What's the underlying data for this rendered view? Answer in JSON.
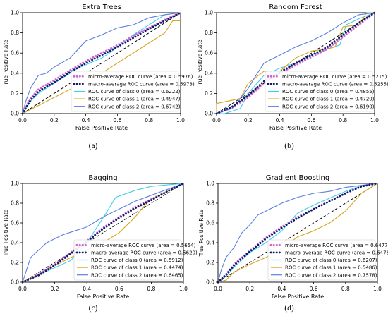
{
  "legend_labels": [
    "micro-average ROC curve",
    "macro-average ROC curve",
    "ROC curve of class 0",
    "ROC curve of class 1",
    "ROC curve of class 2"
  ],
  "series_styles": [
    {
      "color": "#d35fd3",
      "dash": "dot"
    },
    {
      "color": "#0b1a6b",
      "dash": "dot"
    },
    {
      "color": "#3fd0ec",
      "dash": "solid"
    },
    {
      "color": "#d6a61c",
      "dash": "solid"
    },
    {
      "color": "#5b7fe0",
      "dash": "solid"
    }
  ],
  "chart_data": [
    {
      "type": "line",
      "title": "Extra Trees",
      "caption": "(a)",
      "xlabel": "False Positive Rate",
      "ylabel": "True Positive Rate",
      "xlim": [
        0,
        1
      ],
      "ylim": [
        0,
        1
      ],
      "xticks": [
        "0.0",
        "0.2",
        "0.4",
        "0.6",
        "0.8",
        "1.0"
      ],
      "yticks": [
        "0.0",
        "0.2",
        "0.4",
        "0.6",
        "0.8",
        "1.0"
      ],
      "legend_areas": [
        "0.5976",
        "0.5973",
        "0.6222",
        "0.4947",
        "0.6742"
      ],
      "series": [
        {
          "name": "micro-average ROC curve",
          "x": [
            0,
            0.05,
            0.1,
            0.2,
            0.3,
            0.4,
            0.5,
            0.6,
            0.7,
            0.8,
            0.9,
            1
          ],
          "y": [
            0,
            0.15,
            0.24,
            0.33,
            0.43,
            0.52,
            0.6,
            0.68,
            0.77,
            0.85,
            0.93,
            1
          ]
        },
        {
          "name": "macro-average ROC curve",
          "x": [
            0,
            0.05,
            0.1,
            0.2,
            0.3,
            0.4,
            0.5,
            0.6,
            0.7,
            0.8,
            0.9,
            1
          ],
          "y": [
            0,
            0.13,
            0.22,
            0.31,
            0.41,
            0.5,
            0.58,
            0.66,
            0.75,
            0.84,
            0.92,
            1
          ]
        },
        {
          "name": "ROC curve of class 0",
          "x": [
            0,
            0.05,
            0.1,
            0.2,
            0.3,
            0.35,
            0.5,
            0.55,
            0.6,
            0.7,
            0.8,
            0.9,
            1
          ],
          "y": [
            0,
            0.12,
            0.2,
            0.3,
            0.4,
            0.45,
            0.55,
            0.6,
            0.66,
            0.78,
            0.88,
            0.98,
            1
          ]
        },
        {
          "name": "ROC curve of class 1",
          "x": [
            0,
            0.1,
            0.2,
            0.3,
            0.4,
            0.5,
            0.6,
            0.7,
            0.8,
            0.9,
            0.95,
            1
          ],
          "y": [
            0,
            0.08,
            0.16,
            0.24,
            0.33,
            0.4,
            0.5,
            0.6,
            0.7,
            0.8,
            0.92,
            0.92
          ]
        },
        {
          "name": "ROC curve of class 2",
          "x": [
            0,
            0.02,
            0.05,
            0.1,
            0.15,
            0.2,
            0.3,
            0.4,
            0.5,
            0.6,
            0.7,
            0.8,
            0.9,
            1
          ],
          "y": [
            0,
            0.12,
            0.25,
            0.38,
            0.4,
            0.46,
            0.55,
            0.72,
            0.78,
            0.85,
            0.88,
            0.95,
            0.98,
            1
          ]
        }
      ]
    },
    {
      "type": "line",
      "title": "Random Forest",
      "caption": "(b)",
      "xlabel": "False Positive Rate",
      "ylabel": "True Positive Rate",
      "xlim": [
        0,
        1
      ],
      "ylim": [
        0,
        1
      ],
      "xticks": [
        "0.0",
        "0.2",
        "0.4",
        "0.6",
        "0.8",
        "1.0"
      ],
      "yticks": [
        "0.0",
        "0.2",
        "0.4",
        "0.6",
        "0.8",
        "1.0"
      ],
      "legend_areas": [
        "0.5215",
        "0.5255",
        "0.4855",
        "0.4720",
        "0.6190"
      ],
      "series": [
        {
          "name": "micro-average ROC curve",
          "x": [
            0,
            0.1,
            0.2,
            0.3,
            0.4,
            0.5,
            0.6,
            0.7,
            0.8,
            0.9,
            1
          ],
          "y": [
            0,
            0.06,
            0.16,
            0.3,
            0.4,
            0.48,
            0.56,
            0.64,
            0.76,
            0.88,
            1
          ]
        },
        {
          "name": "macro-average ROC curve",
          "x": [
            0,
            0.1,
            0.2,
            0.3,
            0.4,
            0.5,
            0.6,
            0.7,
            0.8,
            0.9,
            1
          ],
          "y": [
            0,
            0.07,
            0.18,
            0.32,
            0.41,
            0.5,
            0.58,
            0.66,
            0.78,
            0.9,
            1
          ]
        },
        {
          "name": "ROC curve of class 0",
          "x": [
            0,
            0.05,
            0.15,
            0.2,
            0.3,
            0.4,
            0.5,
            0.6,
            0.7,
            0.78,
            0.82,
            0.9,
            1
          ],
          "y": [
            0,
            0,
            0.05,
            0.2,
            0.38,
            0.45,
            0.5,
            0.58,
            0.64,
            0.68,
            0.88,
            0.94,
            1
          ]
        },
        {
          "name": "ROC curve of class 1",
          "x": [
            0,
            0,
            0.15,
            0.2,
            0.3,
            0.4,
            0.5,
            0.6,
            0.7,
            0.75,
            0.8,
            0.9,
            0.95,
            1
          ],
          "y": [
            0,
            0.1,
            0.15,
            0.3,
            0.42,
            0.42,
            0.55,
            0.62,
            0.64,
            0.66,
            0.86,
            0.88,
            1,
            1
          ]
        },
        {
          "name": "ROC curve of class 2",
          "x": [
            0,
            0.1,
            0.2,
            0.25,
            0.3,
            0.4,
            0.5,
            0.6,
            0.7,
            0.8,
            0.9,
            1
          ],
          "y": [
            0,
            0.05,
            0.25,
            0.38,
            0.5,
            0.58,
            0.66,
            0.72,
            0.8,
            0.9,
            0.98,
            1
          ]
        }
      ]
    },
    {
      "type": "line",
      "title": "Bagging",
      "caption": "(c)",
      "xlabel": "False Positive Rate",
      "ylabel": "True Positive Rate",
      "xlim": [
        0,
        1
      ],
      "ylim": [
        0,
        1
      ],
      "xticks": [
        "0.0",
        "0.2",
        "0.4",
        "0.6",
        "0.8",
        "1.0"
      ],
      "yticks": [
        "0.0",
        "0.2",
        "0.4",
        "0.6",
        "0.8",
        "1.0"
      ],
      "legend_areas": [
        "0.5654",
        "0.5620",
        "0.5912",
        "0.4474",
        "0.6465"
      ],
      "series": [
        {
          "name": "micro-average ROC curve",
          "x": [
            0,
            0.1,
            0.2,
            0.3,
            0.4,
            0.5,
            0.6,
            0.7,
            0.8,
            0.9,
            1
          ],
          "y": [
            0,
            0.08,
            0.18,
            0.3,
            0.42,
            0.55,
            0.66,
            0.76,
            0.84,
            0.92,
            1
          ]
        },
        {
          "name": "macro-average ROC curve",
          "x": [
            0,
            0.1,
            0.2,
            0.3,
            0.4,
            0.5,
            0.6,
            0.7,
            0.8,
            0.9,
            1
          ],
          "y": [
            0,
            0.07,
            0.17,
            0.29,
            0.41,
            0.54,
            0.65,
            0.75,
            0.83,
            0.92,
            1
          ]
        },
        {
          "name": "ROC curve of class 0",
          "x": [
            0,
            0.3,
            0.4,
            0.5,
            0.58,
            0.7,
            0.8,
            1
          ],
          "y": [
            0,
            0.22,
            0.4,
            0.65,
            0.86,
            0.93,
            0.97,
            1
          ]
        },
        {
          "name": "ROC curve of class 1",
          "x": [
            0,
            0.3,
            0.5,
            0.6,
            0.7,
            0.75,
            0.8,
            0.9,
            1
          ],
          "y": [
            0,
            0.25,
            0.4,
            0.5,
            0.66,
            0.76,
            0.84,
            0.92,
            1
          ]
        },
        {
          "name": "ROC curve of class 2",
          "x": [
            0,
            0.05,
            0.15,
            0.25,
            0.4,
            0.5,
            0.6,
            0.7,
            0.8,
            0.9,
            1
          ],
          "y": [
            0,
            0.25,
            0.4,
            0.48,
            0.56,
            0.66,
            0.74,
            0.82,
            0.88,
            0.94,
            1
          ]
        }
      ]
    },
    {
      "type": "line",
      "title": "Gradient Boosting",
      "caption": "(d)",
      "xlabel": "False Positive Rate",
      "ylabel": "True Positive Rate",
      "xlim": [
        0,
        1
      ],
      "ylim": [
        0,
        1
      ],
      "xticks": [
        "0.0",
        "0.2",
        "0.4",
        "0.6",
        "0.8",
        "1.0"
      ],
      "yticks": [
        "0.0",
        "0.2",
        "0.4",
        "0.6",
        "0.8",
        "1.0"
      ],
      "legend_areas": [
        "0.6477",
        "0.6476",
        "0.6207",
        "0.5486",
        "0.7578"
      ],
      "series": [
        {
          "name": "micro-average ROC curve",
          "x": [
            0,
            0.05,
            0.1,
            0.2,
            0.3,
            0.4,
            0.5,
            0.6,
            0.7,
            0.8,
            0.9,
            1
          ],
          "y": [
            0,
            0.08,
            0.18,
            0.32,
            0.45,
            0.56,
            0.66,
            0.74,
            0.82,
            0.9,
            0.97,
            1
          ]
        },
        {
          "name": "macro-average ROC curve",
          "x": [
            0,
            0.05,
            0.1,
            0.2,
            0.3,
            0.4,
            0.5,
            0.6,
            0.7,
            0.8,
            0.9,
            1
          ],
          "y": [
            0,
            0.07,
            0.17,
            0.31,
            0.44,
            0.55,
            0.65,
            0.74,
            0.82,
            0.9,
            0.97,
            1
          ]
        },
        {
          "name": "ROC curve of class 0",
          "x": [
            0,
            0.05,
            0.1,
            0.2,
            0.3,
            0.4,
            0.5,
            0.6,
            0.7,
            0.8,
            0.9,
            1
          ],
          "y": [
            0,
            0.06,
            0.15,
            0.3,
            0.4,
            0.52,
            0.7,
            0.78,
            0.85,
            0.92,
            0.98,
            1
          ]
        },
        {
          "name": "ROC curve of class 1",
          "x": [
            0,
            0.05,
            0.1,
            0.2,
            0.3,
            0.4,
            0.5,
            0.6,
            0.7,
            0.8,
            0.9,
            1
          ],
          "y": [
            0,
            0.02,
            0.1,
            0.18,
            0.25,
            0.34,
            0.46,
            0.52,
            0.6,
            0.72,
            0.9,
            1
          ]
        },
        {
          "name": "ROC curve of class 2",
          "x": [
            0,
            0.02,
            0.05,
            0.1,
            0.15,
            0.2,
            0.25,
            0.3,
            0.4,
            0.5,
            0.6,
            0.7,
            0.8,
            0.9,
            1
          ],
          "y": [
            0,
            0.12,
            0.25,
            0.35,
            0.5,
            0.58,
            0.68,
            0.72,
            0.8,
            0.86,
            0.9,
            0.92,
            0.96,
            0.98,
            1
          ]
        }
      ]
    }
  ]
}
